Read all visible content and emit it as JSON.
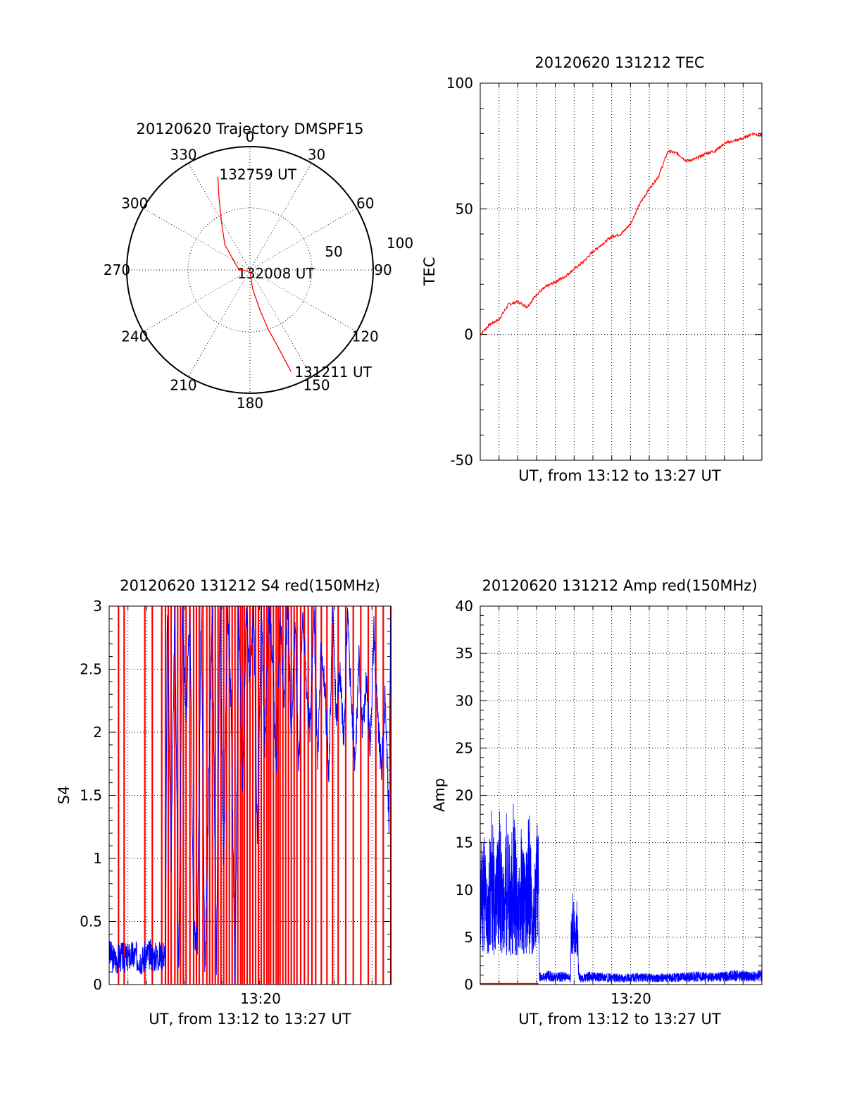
{
  "colors": {
    "red": "#ff0000",
    "blue": "#0000ff",
    "axis": "#000000"
  },
  "chart_data": [
    {
      "type": "polar",
      "title": "20120620 Trajectory DMSPF15",
      "angle_labels": [
        "0",
        "30",
        "60",
        "90",
        "120",
        "150",
        "180",
        "210",
        "240",
        "270",
        "300",
        "330"
      ],
      "radial_labels": [
        "50",
        "100"
      ],
      "rlim": [
        0,
        100
      ],
      "points": [
        {
          "label": "132759 UT",
          "az": 341,
          "el": 18
        },
        {
          "label": "132008 UT",
          "az": 180,
          "el": 90
        },
        {
          "label": "131211 UT",
          "az": 158,
          "el": 10
        }
      ],
      "track": [
        [
          341,
          18
        ],
        [
          337,
          32
        ],
        [
          330,
          48
        ],
        [
          315,
          64
        ],
        [
          270,
          82
        ],
        [
          185,
          89
        ],
        [
          172,
          76
        ],
        [
          166,
          60
        ],
        [
          163,
          45
        ],
        [
          160,
          30
        ],
        [
          158,
          10
        ]
      ]
    },
    {
      "type": "line",
      "title": "20120620 131212 TEC",
      "xlabel": "UT, from 13:12 to 13:27 UT",
      "ylabel": "TEC",
      "ylim": [
        -50,
        100
      ],
      "yticks": [
        "100",
        "50",
        "0",
        "-50"
      ],
      "xlim": [
        0,
        15
      ],
      "series": [
        {
          "color": "red",
          "x": [
            0,
            0.5,
            1,
            1.5,
            2,
            2.5,
            3,
            3.5,
            4,
            4.5,
            5,
            5.5,
            6,
            6.5,
            7,
            7.5,
            8,
            8.5,
            9,
            9.5,
            10,
            10.5,
            11,
            11.5,
            12,
            12.5,
            13,
            13.5,
            14,
            14.5,
            15
          ],
          "y": [
            0,
            4,
            6,
            12,
            13,
            11,
            16,
            19,
            21,
            23,
            26,
            29,
            33,
            36,
            39,
            40,
            44,
            52,
            58,
            63,
            73,
            72,
            69,
            70,
            72,
            73,
            76,
            77,
            78,
            80,
            79
          ]
        }
      ]
    },
    {
      "type": "line",
      "title": "20120620 131212 S4 red(150MHz)",
      "xlabel": "UT, from 13:12 to 13:27 UT",
      "ylabel": "S4",
      "ylim": [
        0,
        3
      ],
      "yticks": [
        "3",
        "2.5",
        "2",
        "1.5",
        "1",
        "0.5",
        "0"
      ],
      "xtick_label": "13:20",
      "xlim": [
        0,
        15
      ],
      "series": [
        {
          "color": "blue",
          "x": [
            0,
            0.3,
            0.6,
            0.9,
            1.2,
            1.5,
            1.8,
            2.1,
            2.4,
            2.7,
            3.0,
            3.1,
            3.3,
            3.5,
            3.7,
            3.9,
            4.1,
            4.3,
            4.5,
            4.7,
            4.9,
            5.1,
            5.3,
            5.5,
            5.7,
            5.9,
            6.1,
            6.3,
            6.5,
            6.7,
            6.9,
            7.1,
            7.3,
            7.5,
            7.7,
            7.9,
            8.1,
            8.3,
            8.5,
            8.7,
            8.9,
            9.1,
            9.3,
            9.5,
            9.7,
            9.9,
            10.1,
            10.3,
            10.5,
            10.7,
            10.9,
            11.1,
            11.3,
            11.5,
            11.7,
            11.9,
            12.1,
            12.3,
            12.5,
            12.7,
            12.9,
            13.1,
            13.3,
            13.5,
            13.7,
            13.9,
            14.1,
            14.3,
            14.5,
            14.7,
            14.9,
            15
          ],
          "y": [
            0.24,
            0.2,
            0.22,
            0.21,
            0.23,
            0.22,
            0.2,
            0.24,
            0.22,
            0.23,
            0.25,
            3,
            1.0,
            3,
            0.02,
            3,
            2.1,
            3,
            0.4,
            0.36,
            3,
            0.05,
            1.6,
            3,
            0.02,
            3,
            0.9,
            3,
            2.2,
            0.02,
            3,
            1.5,
            3,
            2.4,
            3,
            1.1,
            3,
            1.9,
            3,
            2.6,
            1.7,
            3,
            2.2,
            3,
            2.0,
            2.9,
            1.7,
            3,
            2.4,
            2.0,
            3,
            1.8,
            2.7,
            2.3,
            1.6,
            3,
            2.1,
            2.5,
            1.9,
            3,
            2.2,
            1.7,
            2.6,
            2.0,
            2.4,
            1.9,
            2.8,
            2.1,
            1.7,
            2.3,
            1.3,
            3
          ]
        },
        {
          "color": "red",
          "spikes_x": [
            0.5,
            0.8,
            1.9,
            2.3,
            2.8,
            3.0,
            3.15,
            3.3,
            3.5,
            3.65,
            3.8,
            3.95,
            4.1,
            4.3,
            4.5,
            4.65,
            4.8,
            5.0,
            5.2,
            5.35,
            5.5,
            5.65,
            5.8,
            5.95,
            6.1,
            6.25,
            6.4,
            6.55,
            6.7,
            6.85,
            7.0,
            7.1,
            7.2,
            7.35,
            7.5,
            7.65,
            7.8,
            7.95,
            8.1,
            8.25,
            8.4,
            8.5,
            8.6,
            8.75,
            8.9,
            9.0,
            9.1,
            9.25,
            9.4,
            9.55,
            9.7,
            9.85,
            10.0,
            10.2,
            10.4,
            10.6,
            10.8,
            11.0,
            11.3,
            11.6,
            11.9,
            12.2,
            12.6,
            13.0,
            13.4,
            13.8,
            14.2,
            14.6,
            15.0
          ]
        }
      ]
    },
    {
      "type": "line",
      "title": "20120620 131212 Amp red(150MHz)",
      "xlabel": "UT, from 13:12 to 13:27 UT",
      "ylabel": "Amp",
      "ylim": [
        0,
        40
      ],
      "yticks": [
        "40",
        "35",
        "30",
        "25",
        "20",
        "15",
        "10",
        "5",
        "0"
      ],
      "xtick_label": "13:20",
      "xlim": [
        0,
        15
      ],
      "series": [
        {
          "color": "blue",
          "x": [
            0,
            0.2,
            0.4,
            0.6,
            0.8,
            1.0,
            1.2,
            1.4,
            1.6,
            1.8,
            2.0,
            2.2,
            2.4,
            2.6,
            2.8,
            3.0,
            3.1,
            3.15,
            3.3,
            3.6,
            4.0,
            4.4,
            4.8,
            4.85,
            4.95,
            5.05,
            5.15,
            5.25,
            5.4,
            5.8,
            6.5,
            7.5,
            8.5,
            9.5,
            10.5,
            11.5,
            12.5,
            13.5,
            14.5,
            15
          ],
          "y": [
            11,
            14,
            7,
            16,
            9,
            17,
            8,
            15,
            10,
            18,
            7,
            14,
            9,
            16,
            6,
            13,
            15,
            1,
            0.8,
            1.1,
            0.9,
            1.0,
            0.8,
            5,
            7,
            3,
            6,
            1,
            0.7,
            1.0,
            0.9,
            0.8,
            0.9,
            0.8,
            0.9,
            1.0,
            0.9,
            1.1,
            1.0,
            1.2
          ]
        },
        {
          "color": "red",
          "x": [
            0,
            15
          ],
          "y": [
            0.1,
            0.1
          ]
        }
      ]
    }
  ]
}
